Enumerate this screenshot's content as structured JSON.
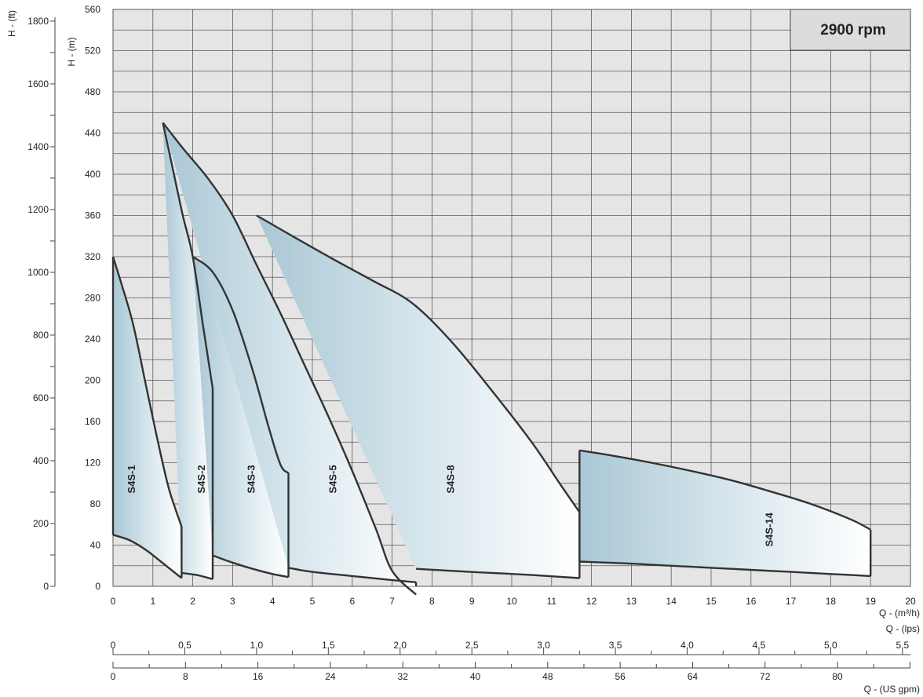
{
  "chart_data": {
    "type": "area",
    "speed_label": "2900 rpm",
    "x_label_m3h": "Q  -  (m³/h)",
    "x_label_lps": "Q  -  (lps)",
    "x_label_gpm": "Q  -  (US gpm)",
    "y_label_m": "H - (m)",
    "y_label_ft": "H - (ft)",
    "xlim": [
      0,
      20
    ],
    "ylim": [
      0,
      560
    ],
    "ylim_ft": [
      0,
      1837.3
    ],
    "x_ticks": [
      "0",
      "1",
      "2",
      "3",
      "4",
      "5",
      "6",
      "7",
      "8",
      "9",
      "10",
      "11",
      "12",
      "13",
      "14",
      "15",
      "16",
      "17",
      "18",
      "19",
      "20"
    ],
    "y_ticks": [
      "0",
      "40",
      "80",
      "120",
      "160",
      "200",
      "240",
      "280",
      "320",
      "360",
      "400",
      "440",
      "480",
      "520",
      "560"
    ],
    "ft_ticks": [
      "0",
      "200",
      "400",
      "600",
      "800",
      "1000",
      "1200",
      "1400",
      "1600",
      "1800"
    ],
    "lps_ticks": [
      "0",
      "0.5",
      "1.0",
      "1.5",
      "2.0",
      "2.5",
      "3.0",
      "3.5",
      "4.0",
      "4.5",
      "5.0",
      "5.5"
    ],
    "gpm_ticks": [
      "0",
      "8",
      "16",
      "24",
      "32",
      "40",
      "48",
      "56",
      "64",
      "72",
      "80"
    ],
    "series": [
      {
        "name": "S4S-1",
        "label_at": [
          0.55,
          104
        ],
        "top": [
          [
            0,
            320
          ],
          [
            0.2,
            295
          ],
          [
            0.5,
            255
          ],
          [
            0.8,
            200
          ],
          [
            1.1,
            145
          ],
          [
            1.4,
            95
          ],
          [
            1.72,
            58
          ]
        ],
        "bottom": [
          [
            0,
            50
          ],
          [
            0.4,
            45
          ],
          [
            0.8,
            36
          ],
          [
            1.2,
            24
          ],
          [
            1.72,
            8
          ]
        ]
      },
      {
        "name": "S4S-2",
        "label_at": [
          2.3,
          104
        ],
        "top": [
          [
            1.25,
            450
          ],
          [
            1.5,
            405
          ],
          [
            1.75,
            360
          ],
          [
            2.0,
            320
          ],
          [
            2.25,
            255
          ],
          [
            2.5,
            192
          ]
        ],
        "bottom": [
          [
            1.72,
            13
          ],
          [
            2.1,
            11
          ],
          [
            2.5,
            7
          ]
        ]
      },
      {
        "name": "S4S-3",
        "label_at": [
          3.55,
          104
        ],
        "top": [
          [
            2.0,
            320
          ],
          [
            2.5,
            305
          ],
          [
            3.0,
            268
          ],
          [
            3.5,
            210
          ],
          [
            3.9,
            155
          ],
          [
            4.2,
            118
          ],
          [
            4.4,
            110
          ]
        ],
        "bottom": [
          [
            2.5,
            30
          ],
          [
            3.0,
            23
          ],
          [
            3.5,
            17
          ],
          [
            4.0,
            12
          ],
          [
            4.4,
            9
          ]
        ]
      },
      {
        "name": "S4S-5",
        "label_at": [
          5.6,
          104
        ],
        "top": [
          [
            1.25,
            450
          ],
          [
            1.8,
            423
          ],
          [
            2.4,
            395
          ],
          [
            3.0,
            360
          ],
          [
            3.6,
            312
          ],
          [
            4.2,
            265
          ],
          [
            4.8,
            215
          ],
          [
            5.4,
            165
          ],
          [
            6.0,
            112
          ],
          [
            6.6,
            55
          ],
          [
            7.0,
            15
          ],
          [
            7.6,
            -8
          ]
        ],
        "bottom": [
          [
            4.4,
            18
          ],
          [
            5.0,
            14
          ],
          [
            6.0,
            10
          ],
          [
            7.0,
            6
          ],
          [
            7.6,
            4
          ]
        ]
      },
      {
        "name": "S4S-8",
        "label_at": [
          8.55,
          104
        ],
        "top": [
          [
            3.6,
            360
          ],
          [
            4.5,
            340
          ],
          [
            5.5,
            318
          ],
          [
            6.5,
            297
          ],
          [
            7.5,
            275
          ],
          [
            8.5,
            237
          ],
          [
            9.5,
            190
          ],
          [
            10.5,
            140
          ],
          [
            11.2,
            100
          ],
          [
            11.7,
            72
          ]
        ],
        "bottom": [
          [
            7.6,
            17
          ],
          [
            8.5,
            15
          ],
          [
            9.5,
            13
          ],
          [
            10.5,
            11
          ],
          [
            11.7,
            8
          ]
        ]
      },
      {
        "name": "S4S-14",
        "label_at": [
          16.55,
          55
        ],
        "top": [
          [
            11.7,
            132
          ],
          [
            12.5,
            127
          ],
          [
            13.5,
            120
          ],
          [
            14.5,
            112
          ],
          [
            15.5,
            103
          ],
          [
            16.5,
            92
          ],
          [
            17.5,
            80
          ],
          [
            18.5,
            65
          ],
          [
            19.0,
            55
          ]
        ],
        "bottom": [
          [
            11.7,
            24
          ],
          [
            13,
            22
          ],
          [
            14,
            20
          ],
          [
            15,
            18
          ],
          [
            16,
            16
          ],
          [
            17,
            14
          ],
          [
            18,
            12
          ],
          [
            19,
            10
          ]
        ]
      }
    ]
  }
}
